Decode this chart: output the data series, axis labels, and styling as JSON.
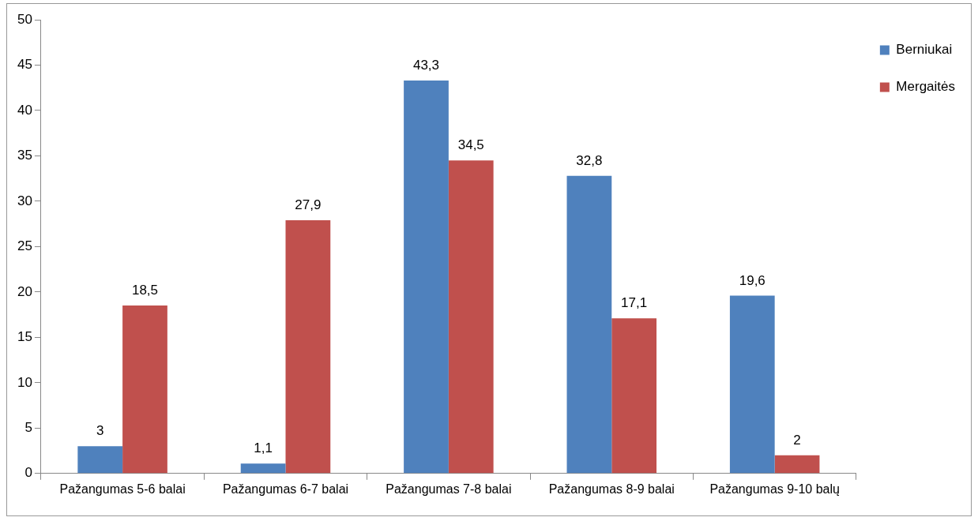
{
  "chart_data": {
    "type": "bar",
    "categories": [
      "Pažangumas 5-6 balai",
      "Pažangumas 6-7 balai",
      "Pažangumas 7-8 balai",
      "Pažangumas 8-9 balai",
      "Pažangumas 9-10 balų"
    ],
    "series": [
      {
        "name": "Berniukai",
        "color": "#4f81bd",
        "values": [
          3,
          1.1,
          43.3,
          32.8,
          19.6
        ],
        "value_labels": [
          "3",
          "1,1",
          "43,3",
          "32,8",
          "19,6"
        ]
      },
      {
        "name": "Mergaitės",
        "color": "#c0504d",
        "values": [
          18.5,
          27.9,
          34.5,
          17.1,
          2
        ],
        "value_labels": [
          "18,5",
          "27,9",
          "34,5",
          "17,1",
          "2"
        ]
      }
    ],
    "ylim": [
      0,
      50
    ],
    "yticks": [
      0,
      5,
      10,
      15,
      20,
      25,
      30,
      35,
      40,
      45,
      50
    ],
    "grid": false,
    "legend": "top right"
  }
}
